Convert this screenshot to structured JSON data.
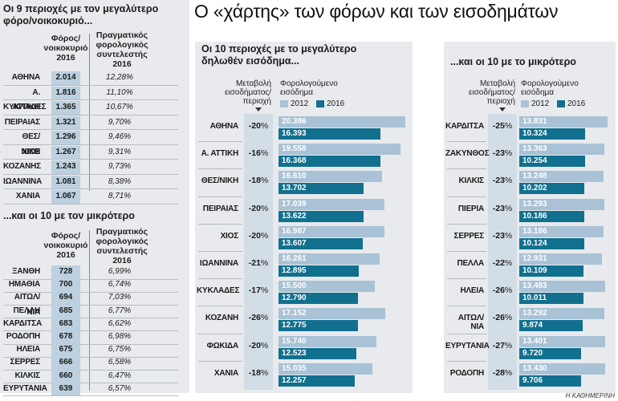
{
  "main_title": "Ο «χάρτης» των φόρων και των εισοδημάτων",
  "source": "Η ΚΑΘΗΜΕΡΙΝΗ",
  "left_top": {
    "title_line1": "Οι 9 περιοχές  με τον μεγαλύτερο",
    "title_line2": "φόρο/νοικοκυριό...",
    "col_tax": [
      "Φόρος/",
      "νοικοκυριό",
      "2016"
    ],
    "col_rate": [
      "Πραγματικός",
      "φορολογικός",
      "συντελεστής",
      "2016"
    ],
    "rows": [
      {
        "name": "ΑΘΗΝΑ",
        "tax": "2.014",
        "rate": "12,28%"
      },
      {
        "name": "Α. ΑΤΤΙΚΗ",
        "tax": "1.816",
        "rate": "11,10%"
      },
      {
        "name": "ΚΥΚΛΑΔΕΣ",
        "tax": "1.365",
        "rate": "10,67%"
      },
      {
        "name": "ΠΕΙΡΑΙΑΣ",
        "tax": "1.321",
        "rate": "9,70%"
      },
      {
        "name": "ΘΕΣ/ΝΙΚΗ",
        "tax": "1.296",
        "rate": "9,46%"
      },
      {
        "name": "ΧΙΟΣ",
        "tax": "1.267",
        "rate": "9,31%"
      },
      {
        "name": "ΚΟΖΑΝΗΣ",
        "tax": "1.243",
        "rate": "9,73%"
      },
      {
        "name": "ΙΩΑΝΝΙΝΑ",
        "tax": "1.081",
        "rate": "8,38%"
      },
      {
        "name": "ΧΑΝΙΑ",
        "tax": "1.067",
        "rate": "8,71%"
      }
    ]
  },
  "left_bottom": {
    "title": "...και οι 10 με τον μικρότερο",
    "col_tax": [
      "Φόρος/",
      "νοικοκυριό",
      "2016"
    ],
    "col_rate": [
      "Πραγματικός",
      "φορολογικός",
      "συντελεστής",
      "2016"
    ],
    "rows": [
      {
        "name": "ΞΑΝΘΗ",
        "tax": "728",
        "rate": "6,99%"
      },
      {
        "name": "ΗΜΑΘΙΑ",
        "tax": "700",
        "rate": "6,74%"
      },
      {
        "name": "ΑΙΤΩΛ/ΝΙΑ",
        "tax": "694",
        "rate": "7,03%"
      },
      {
        "name": "ΠΕΛΛΗ",
        "tax": "685",
        "rate": "6,77%"
      },
      {
        "name": "ΚΑΡΔΙΤΣΑ",
        "tax": "683",
        "rate": "6,62%"
      },
      {
        "name": "ΡΟΔΟΠΗ",
        "tax": "678",
        "rate": "6,98%"
      },
      {
        "name": "ΗΛΕΙΑ",
        "tax": "675",
        "rate": "6,75%"
      },
      {
        "name": "ΣΕΡΡΕΣ",
        "tax": "666",
        "rate": "6,58%"
      },
      {
        "name": "ΚΙΛΚΙΣ",
        "tax": "660",
        "rate": "6,47%"
      },
      {
        "name": "ΕΥΡΥΤΑΝΙΑ",
        "tax": "639",
        "rate": "6,57%"
      }
    ]
  },
  "colors": {
    "y2012": "#a9c2d5",
    "y2016": "#12708f",
    "panel_bg": "#e8eaed",
    "highlight": "#bcd0df"
  },
  "chart_data": [
    {
      "type": "bar",
      "title_line1": "Οι 10 περιοχές  με το μεγαλύτερο",
      "title_line2": "δηλωθέν εισόδημα...",
      "change_header": [
        "Μεταβολή",
        "εισοδήματος/",
        "περιοχή"
      ],
      "income_header": [
        "Φορολογούμενο",
        "εισόδημα"
      ],
      "legend": [
        "2012",
        "2016"
      ],
      "categories": [
        "ΑΘΗΝΑ",
        "Α. ΑΤΤΙΚΗ",
        "ΘΕΣ/ΝΙΚΗ",
        "ΠΕΙΡΑΙΑΣ",
        "ΧΙΟΣ",
        "ΙΩΑΝΝΙΝΑ",
        "ΚΥΚΛΑΔΕΣ",
        "ΚΟΖΑΝΗ",
        "ΦΩΚΙΔΑ",
        "ΧΑΝΙΑ"
      ],
      "change": [
        "-20",
        "-16",
        "-18",
        "-20",
        "-20",
        "-21",
        "-17",
        "-26",
        "-20",
        "-18"
      ],
      "series": [
        {
          "name": "2012",
          "values": [
            20386,
            19558,
            16610,
            17039,
            16987,
            16261,
            15500,
            17152,
            15740,
            15035
          ],
          "labels": [
            "20.386",
            "19.558",
            "16.610",
            "17.039",
            "16.987",
            "16.261",
            "15.500",
            "17.152",
            "15.740",
            "15.035"
          ]
        },
        {
          "name": "2016",
          "values": [
            16393,
            16368,
            13702,
            13622,
            13607,
            12895,
            12790,
            12775,
            12523,
            12257
          ],
          "labels": [
            "16.393",
            "16.368",
            "13.702",
            "13.622",
            "13.607",
            "12.895",
            "12.790",
            "12.775",
            "12.523",
            "12.257"
          ]
        }
      ]
    },
    {
      "type": "bar",
      "title_line1": "...και οι 10 με το μικρότερο",
      "title_line2": "",
      "change_header": [
        "Μεταβολή",
        "εισοδήματος/",
        "περιοχή"
      ],
      "income_header": [
        "Φορολογούμενο",
        "εισόδημα"
      ],
      "legend": [
        "2012",
        "2016"
      ],
      "categories": [
        "ΚΑΡΔΙΤΣΑ",
        "ΖΑΚΥΝΘΟΣ",
        "ΚΙΛΚΙΣ",
        "ΠΙΕΡΙΑ",
        "ΣΕΡΡΕΣ",
        "ΠΕΛΛΑ",
        "ΗΛΕΙΑ",
        "ΑΙΤΩΛ/ΝΙΑ",
        "ΕΥΡΥΤΑΝΙΑ",
        "ΡΟΔΟΠΗ"
      ],
      "change": [
        "-25",
        "-23",
        "-23",
        "-23",
        "-23",
        "-22",
        "-26",
        "-26",
        "-27",
        "-28"
      ],
      "series": [
        {
          "name": "2012",
          "values": [
            13831,
            13363,
            13248,
            13293,
            13186,
            12931,
            13483,
            13292,
            13401,
            13430
          ],
          "labels": [
            "13.831",
            "13.363",
            "13.248",
            "13.293",
            "13.186",
            "12.931",
            "13.483",
            "13.292",
            "13.401",
            "13.430"
          ]
        },
        {
          "name": "2016",
          "values": [
            10324,
            10254,
            10202,
            10186,
            10124,
            10109,
            10011,
            9874,
            9720,
            9706
          ],
          "labels": [
            "10.324",
            "10.254",
            "10.202",
            "10.186",
            "10.124",
            "10.109",
            "10.011",
            "9.874",
            "9.720",
            "9.706"
          ]
        }
      ]
    }
  ]
}
